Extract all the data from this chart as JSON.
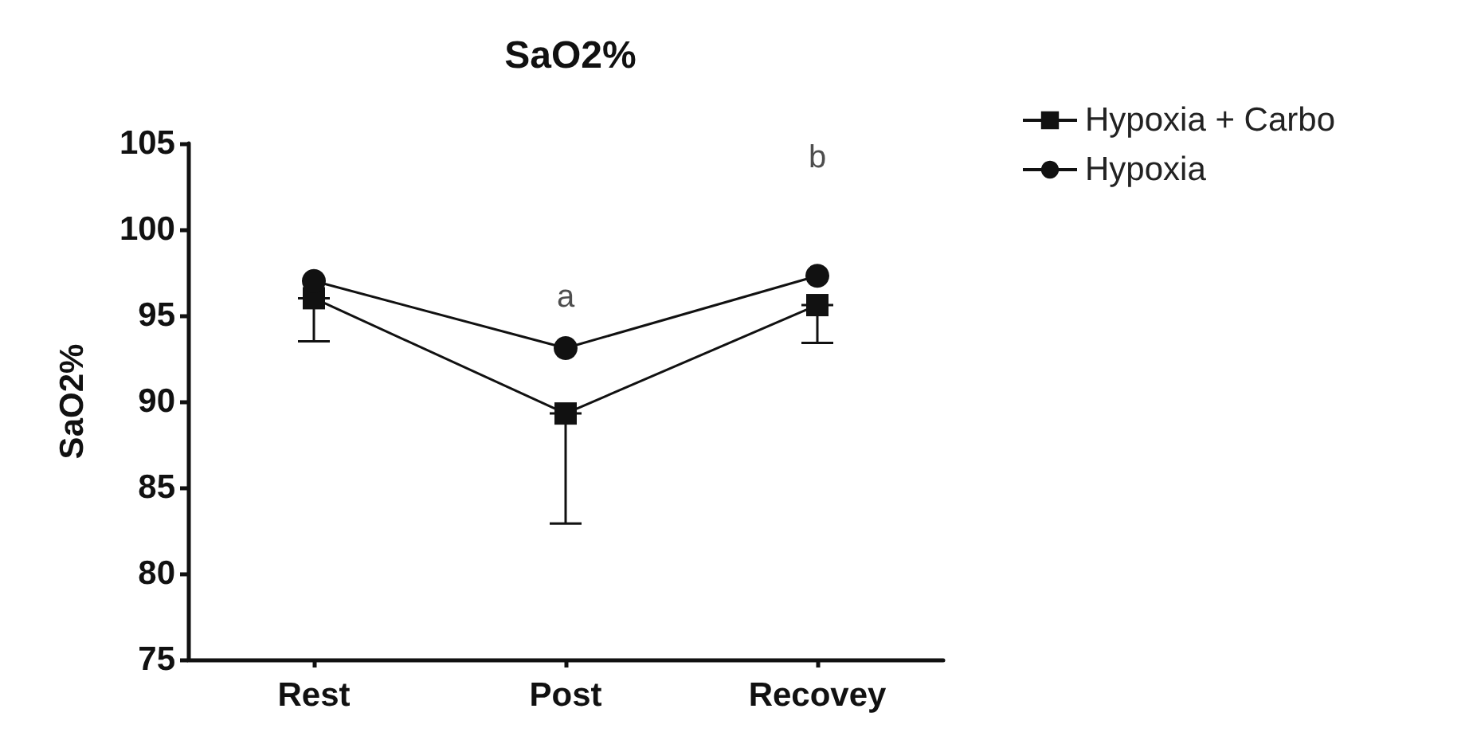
{
  "chart_data": {
    "type": "line",
    "title": "SaO2%",
    "ylabel": "SaO2%",
    "categories": [
      "Rest",
      "Post",
      "Recovey"
    ],
    "series": [
      {
        "name": "Hypoxia + Carbo",
        "color": "#111111",
        "marker": "square",
        "values": [
          96.0,
          89.3,
          95.6
        ],
        "errors": [
          [
            93.5,
            96.0
          ],
          [
            82.9,
            89.3
          ],
          [
            93.4,
            95.6
          ]
        ]
      },
      {
        "name": "Hypoxia",
        "color": "#111111",
        "marker": "circle",
        "values": [
          97.0,
          93.1,
          97.3
        ]
      }
    ],
    "ylim": [
      75,
      105
    ],
    "yticks": [
      75,
      80,
      85,
      90,
      95,
      100,
      105
    ],
    "grid": false,
    "legend": "right",
    "line_style": "solid",
    "annotations": [
      "a",
      "b"
    ]
  }
}
